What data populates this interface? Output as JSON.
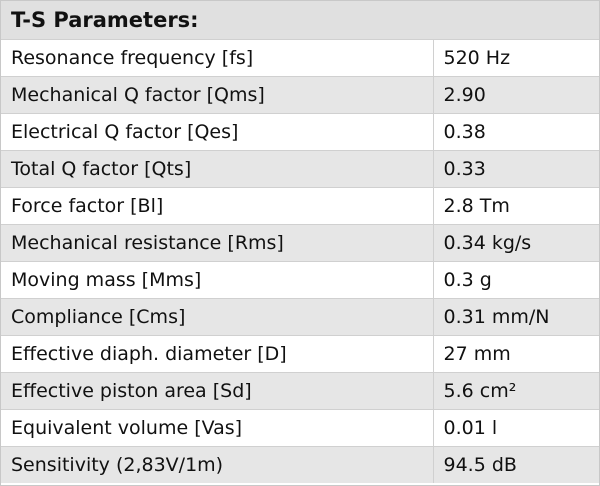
{
  "table": {
    "title": "T-S Parameters:",
    "rows": [
      [
        "Resonance frequency [fs]",
        "520 Hz"
      ],
      [
        "Mechanical Q factor [Qms]",
        "2.90"
      ],
      [
        "Electrical Q factor [Qes]",
        "0.38"
      ],
      [
        "Total Q factor [Qts]",
        "0.33"
      ],
      [
        "Force factor [Bl]",
        "2.8 Tm"
      ],
      [
        "Mechanical resistance [Rms]",
        "0.34 kg/s"
      ],
      [
        "Moving mass [Mms]",
        "0.3 g"
      ],
      [
        "Compliance [Cms]",
        "0.31 mm/N"
      ],
      [
        "Effective diaph. diameter [D]",
        "27 mm"
      ],
      [
        "Effective piston area [Sd]",
        "5.6 cm²"
      ],
      [
        "Equivalent volume [Vas]",
        "0.01 l"
      ],
      [
        "Sensitivity (2,83V/1m)",
        "94.5 dB"
      ]
    ]
  }
}
